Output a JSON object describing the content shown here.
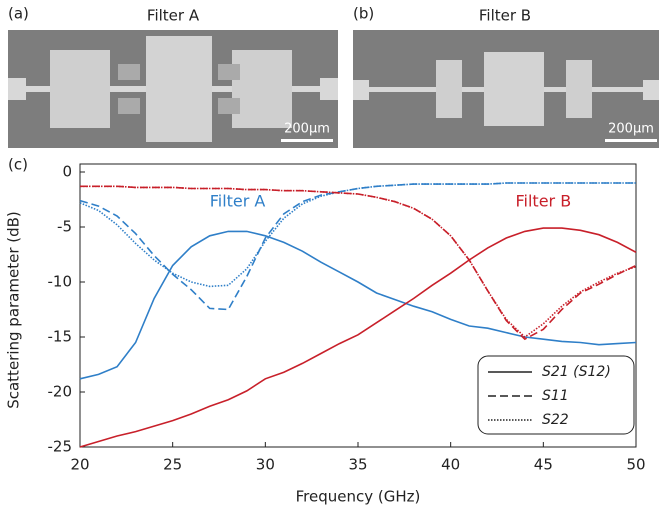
{
  "panels": [
    {
      "label": "(a)",
      "title": "Filter A",
      "scale": "200μm"
    },
    {
      "label": "(b)",
      "title": "Filter B",
      "scale": "200μm"
    }
  ],
  "chart_data": {
    "type": "line",
    "panel_label": "(c)",
    "x_label": "Frequency (GHz)",
    "y_label": "Scattering parameter (dB)",
    "x": [
      20,
      21,
      22,
      23,
      24,
      25,
      26,
      27,
      28,
      29,
      30,
      31,
      32,
      33,
      34,
      35,
      36,
      37,
      38,
      39,
      40,
      41,
      42,
      43,
      44,
      45,
      46,
      47,
      48,
      49,
      50
    ],
    "xlim": [
      20,
      50
    ],
    "xticks": [
      20,
      25,
      30,
      35,
      40,
      45,
      50
    ],
    "ylim": [
      -25,
      0
    ],
    "yticks": [
      -25,
      -20,
      -15,
      -10,
      -5,
      0
    ],
    "annotations": [
      {
        "text": "Filter A",
        "color": "#2f7fc8",
        "x": 28.5,
        "y": -4
      },
      {
        "text": "Filter B",
        "color": "#c8202a",
        "x": 45,
        "y": -4
      }
    ],
    "legend": [
      {
        "label": "S21 (S12)",
        "dash": "solid"
      },
      {
        "label": "S11",
        "dash": "dashed"
      },
      {
        "label": "S22",
        "dash": "dotted"
      }
    ],
    "series": [
      {
        "color": "#2f7fc8",
        "dash": "solid",
        "values": [
          -18.8,
          -18.4,
          -17.7,
          -15.5,
          -11.5,
          -8.5,
          -6.8,
          -5.8,
          -5.4,
          -5.4,
          -5.8,
          -6.4,
          -7.2,
          -8.2,
          -9.1,
          -10.0,
          -11.0,
          -11.6,
          -12.2,
          -12.7,
          -13.4,
          -14.0,
          -14.2,
          -14.6,
          -15.0,
          -15.2,
          -15.4,
          -15.5,
          -15.7,
          -15.6,
          -15.5
        ]
      },
      {
        "color": "#2f7fc8",
        "dash": "dashed",
        "values": [
          -2.6,
          -3.1,
          -4.0,
          -5.6,
          -7.6,
          -9.3,
          -10.7,
          -12.4,
          -12.5,
          -9.5,
          -6.0,
          -3.8,
          -2.7,
          -2.1,
          -1.8,
          -1.5,
          -1.3,
          -1.2,
          -1.1,
          -1.1,
          -1.1,
          -1.1,
          -1.1,
          -1.0,
          -1.0,
          -1.0,
          -1.0,
          -1.0,
          -1.0,
          -1.0,
          -1.0
        ]
      },
      {
        "color": "#2f7fc8",
        "dash": "dotted",
        "values": [
          -2.8,
          -3.5,
          -4.8,
          -6.5,
          -8.0,
          -9.2,
          -10.0,
          -10.4,
          -10.3,
          -8.8,
          -6.3,
          -4.2,
          -2.9,
          -2.2,
          -1.8,
          -1.5,
          -1.3,
          -1.2,
          -1.1,
          -1.1,
          -1.1,
          -1.1,
          -1.1,
          -1.0,
          -1.0,
          -1.0,
          -1.0,
          -1.0,
          -1.0,
          -1.0,
          -1.0
        ]
      },
      {
        "color": "#c8202a",
        "dash": "solid",
        "values": [
          -25,
          -24.5,
          -24,
          -23.6,
          -23.1,
          -22.6,
          -22.0,
          -21.3,
          -20.7,
          -19.9,
          -18.8,
          -18.2,
          -17.4,
          -16.5,
          -15.6,
          -14.8,
          -13.7,
          -12.6,
          -11.5,
          -10.3,
          -9.2,
          -8.0,
          -6.9,
          -6.0,
          -5.4,
          -5.1,
          -5.1,
          -5.3,
          -5.7,
          -6.4,
          -7.3
        ]
      },
      {
        "color": "#c8202a",
        "dash": "dashed",
        "values": [
          -1.3,
          -1.3,
          -1.3,
          -1.4,
          -1.4,
          -1.4,
          -1.5,
          -1.5,
          -1.5,
          -1.6,
          -1.6,
          -1.7,
          -1.7,
          -1.8,
          -1.9,
          -2.0,
          -2.3,
          -2.7,
          -3.3,
          -4.3,
          -5.8,
          -8.0,
          -10.8,
          -13.5,
          -15.2,
          -14.3,
          -12.5,
          -11.0,
          -10.2,
          -9.3,
          -8.5
        ]
      },
      {
        "color": "#c8202a",
        "dash": "dotted",
        "values": [
          -1.3,
          -1.3,
          -1.3,
          -1.4,
          -1.4,
          -1.4,
          -1.5,
          -1.5,
          -1.5,
          -1.6,
          -1.6,
          -1.7,
          -1.7,
          -1.8,
          -1.9,
          -2.0,
          -2.3,
          -2.7,
          -3.3,
          -4.3,
          -5.8,
          -8.0,
          -10.8,
          -13.4,
          -15.0,
          -13.8,
          -12.2,
          -10.9,
          -10.0,
          -9.2,
          -8.6
        ]
      }
    ]
  }
}
